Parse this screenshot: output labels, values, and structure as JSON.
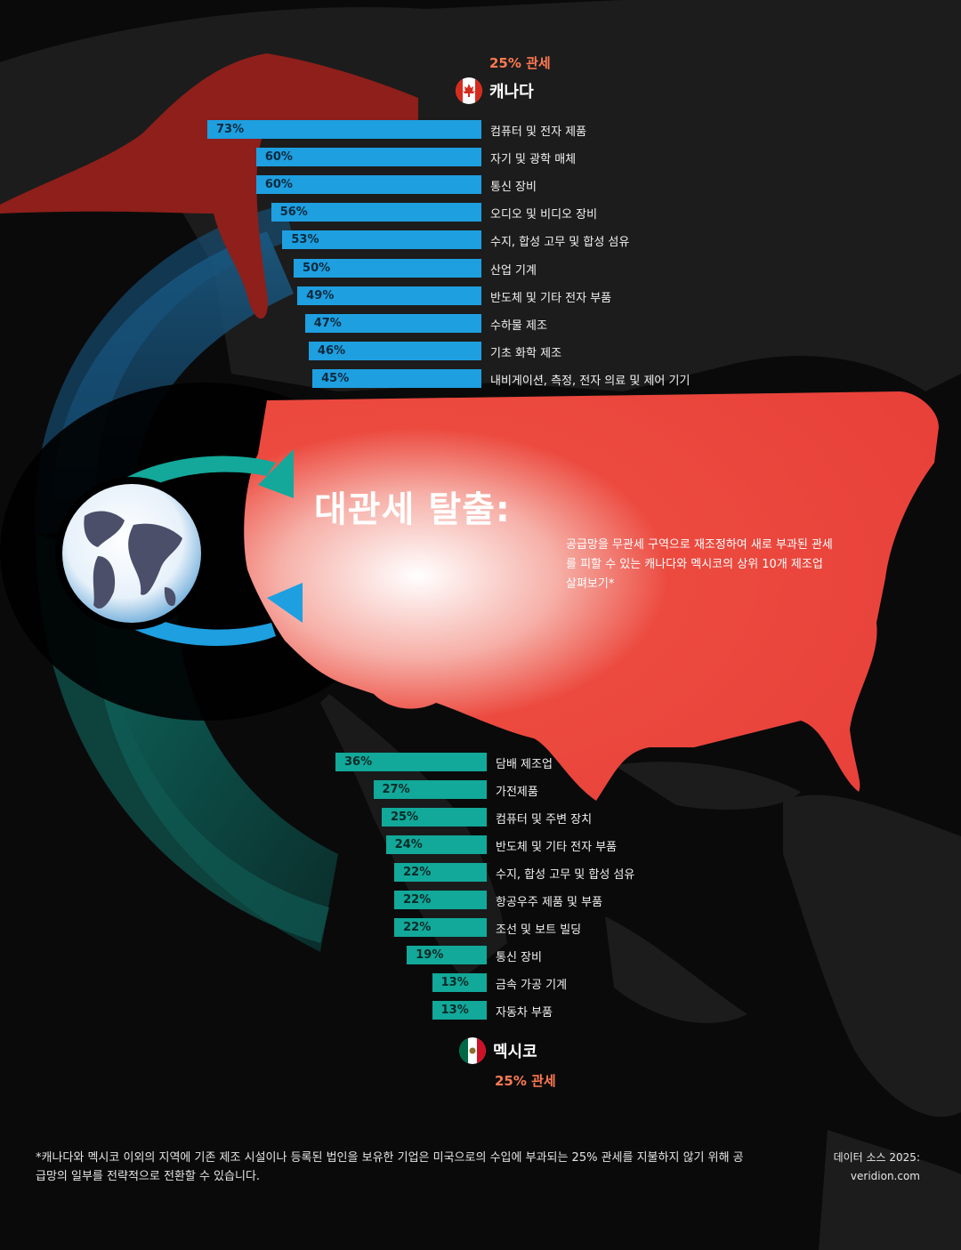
{
  "canada": {
    "tariff": "25% 관세",
    "name": "캐나다"
  },
  "mexico": {
    "tariff": "25% 관세",
    "name": "멕시코"
  },
  "title": "대관세 탈출:",
  "subtitle": "공급망을 무관세 구역으로 재조정하여 새로 부과된 관세를 피할 수 있는 캐나다와 멕시코의 상위 10개 제조업 살펴보기*",
  "footnote": "*캐나다와 멕시코 이외의 지역에 기존 제조 시설이나 등록된 법인을 보유한 기업은 미국으로의 수입에 부과되는 25% 관세를 지불하지 않기 위해 공급망의 일부를 전략적으로 전환할 수 있습니다.",
  "source": {
    "label": "데이터 소스 2025:",
    "site": "veridion.com"
  },
  "colors": {
    "canada_bar": "#1e9fe0",
    "mexico_bar": "#12a89a",
    "usa_map": "#e8413a",
    "tariff_text": "#ff7a52"
  },
  "icons": [
    "canada-flag-icon",
    "mexico-flag-icon",
    "globe-icon",
    "arrow-icon"
  ],
  "chart_data": [
    {
      "type": "bar",
      "orientation": "horizontal",
      "series_name": "캐나다",
      "categories": [
        "컴퓨터 및 전자 제품",
        "자기 및 광학 매체",
        "통신 장비",
        "오디오 및 비디오 장비",
        "수지, 합성 고무 및 합성 섬유",
        "산업 기계",
        "반도체 및 기타 전자 부품",
        "수하물 제조",
        "기초 화학 제조",
        "내비게이션, 측정, 전자 의료 및 제어 기기"
      ],
      "values": [
        73,
        60,
        60,
        56,
        53,
        50,
        49,
        47,
        46,
        45
      ],
      "value_labels": [
        "73%",
        "60%",
        "60%",
        "56%",
        "53%",
        "50%",
        "49%",
        "47%",
        "46%",
        "45%"
      ],
      "xlim": [
        0,
        100
      ],
      "grid": false
    },
    {
      "type": "bar",
      "orientation": "horizontal",
      "series_name": "멕시코",
      "categories": [
        "담배 제조업",
        "가전제품",
        "컴퓨터 및 주변 장치",
        "반도체 및 기타 전자 부품",
        "수지, 합성 고무 및 합성 섬유",
        "항공우주 제품 및 부품",
        "조선 및 보트 빌딩",
        "통신 장비",
        "금속 가공 기계",
        "자동차 부품"
      ],
      "values": [
        36,
        27,
        25,
        24,
        22,
        22,
        22,
        19,
        13,
        13
      ],
      "value_labels": [
        "36%",
        "27%",
        "25%",
        "24%",
        "22%",
        "22%",
        "22%",
        "19%",
        "13%",
        "13%"
      ],
      "xlim": [
        0,
        100
      ],
      "grid": false
    }
  ]
}
